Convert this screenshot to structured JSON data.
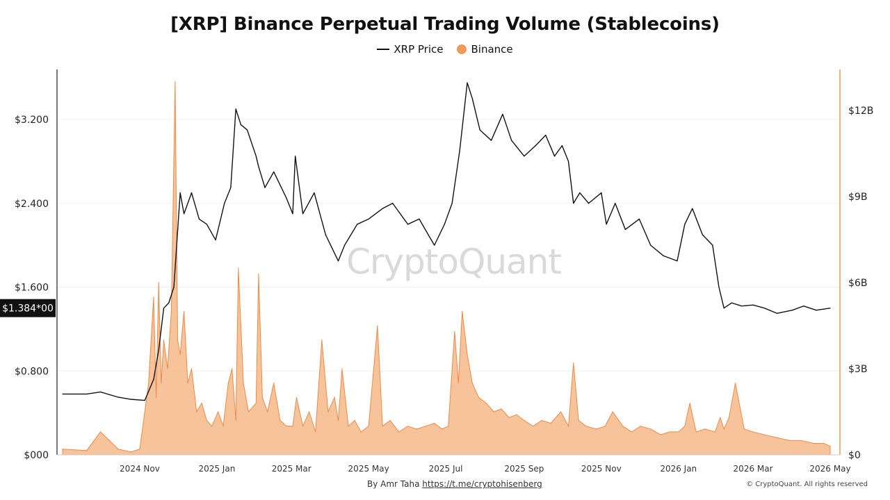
{
  "chart_data": {
    "type": "line",
    "title": "[XRP] Binance Perpetual Trading Volume (Stablecoins)",
    "legend": [
      {
        "name": "XRP Price",
        "style": "line",
        "color": "#111111"
      },
      {
        "name": "Binance",
        "style": "dot",
        "color": "#f0995a"
      }
    ],
    "legend_position": "top-center",
    "grid": true,
    "current_price_label": "$1.384*00",
    "watermark": "CryptoQuant",
    "x_ticks": [
      "2024 Nov",
      "2025 Jan",
      "2025 Mar",
      "2025 May",
      "2025 Jul",
      "2025 Sep",
      "2025 Nov",
      "2026 Jan",
      "2026 Mar",
      "2026 May"
    ],
    "x_range": [
      "2024-09-01",
      "2026-05-01"
    ],
    "y_left": {
      "label": "",
      "ticks": [
        "$000",
        "$0.800",
        "$1.600",
        "$2.400",
        "$3.200"
      ],
      "range": [
        0,
        3.2
      ]
    },
    "y_right": {
      "label": "",
      "ticks": [
        "$0",
        "$3B",
        "$6B",
        "$9B",
        "$12B"
      ],
      "range": [
        0,
        12
      ]
    },
    "series": [
      {
        "name": "XRP Price",
        "axis": "left",
        "color": "#111111",
        "x": [
          "2024-09-01",
          "2024-09-20",
          "2024-10-01",
          "2024-10-15",
          "2024-10-25",
          "2024-11-05",
          "2024-11-12",
          "2024-11-16",
          "2024-11-20",
          "2024-11-24",
          "2024-11-28",
          "2024-12-03",
          "2024-12-06",
          "2024-12-12",
          "2024-12-18",
          "2024-12-24",
          "2024-12-31",
          "2025-01-07",
          "2025-01-12",
          "2025-01-16",
          "2025-01-20",
          "2025-01-25",
          "2025-02-01",
          "2025-02-03",
          "2025-02-08",
          "2025-02-15",
          "2025-02-25",
          "2025-03-02",
          "2025-03-04",
          "2025-03-10",
          "2025-03-19",
          "2025-03-28",
          "2025-04-07",
          "2025-04-12",
          "2025-04-22",
          "2025-05-01",
          "2025-05-12",
          "2025-05-20",
          "2025-06-01",
          "2025-06-10",
          "2025-06-22",
          "2025-06-30",
          "2025-07-06",
          "2025-07-12",
          "2025-07-18",
          "2025-07-22",
          "2025-07-28",
          "2025-08-06",
          "2025-08-15",
          "2025-08-22",
          "2025-09-01",
          "2025-09-10",
          "2025-09-18",
          "2025-09-25",
          "2025-10-01",
          "2025-10-06",
          "2025-10-10",
          "2025-10-15",
          "2025-10-22",
          "2025-11-01",
          "2025-11-05",
          "2025-11-12",
          "2025-11-20",
          "2025-12-01",
          "2025-12-10",
          "2025-12-20",
          "2025-12-31",
          "2026-01-06",
          "2026-01-12",
          "2026-01-20",
          "2026-01-28",
          "2026-02-02",
          "2026-02-06",
          "2026-02-12",
          "2026-02-20",
          "2026-03-01",
          "2026-03-10",
          "2026-03-20",
          "2026-04-01",
          "2026-04-10",
          "2026-04-20",
          "2026-05-01"
        ],
        "values": [
          0.58,
          0.58,
          0.6,
          0.55,
          0.53,
          0.52,
          0.72,
          1.0,
          1.4,
          1.45,
          1.6,
          2.5,
          2.3,
          2.5,
          2.25,
          2.2,
          2.05,
          2.4,
          2.55,
          3.3,
          3.15,
          3.1,
          2.85,
          2.75,
          2.55,
          2.7,
          2.45,
          2.3,
          2.85,
          2.3,
          2.5,
          2.1,
          1.85,
          2.0,
          2.2,
          2.25,
          2.35,
          2.4,
          2.2,
          2.25,
          2.0,
          2.2,
          2.4,
          2.9,
          3.55,
          3.4,
          3.1,
          3.0,
          3.25,
          3.0,
          2.85,
          2.95,
          3.05,
          2.85,
          2.95,
          2.8,
          2.4,
          2.5,
          2.4,
          2.5,
          2.2,
          2.4,
          2.15,
          2.25,
          2.0,
          1.9,
          1.85,
          2.2,
          2.35,
          2.1,
          2.0,
          1.6,
          1.4,
          1.45,
          1.42,
          1.43,
          1.4,
          1.35,
          1.38,
          1.42,
          1.38,
          1.4
        ]
      },
      {
        "name": "Binance",
        "axis": "right",
        "color": "#f0995a",
        "x": [
          "2024-09-01",
          "2024-09-20",
          "2024-10-01",
          "2024-10-15",
          "2024-10-25",
          "2024-11-01",
          "2024-11-05",
          "2024-11-08",
          "2024-11-12",
          "2024-11-14",
          "2024-11-16",
          "2024-11-18",
          "2024-11-20",
          "2024-11-23",
          "2024-11-26",
          "2024-11-29",
          "2024-12-01",
          "2024-12-03",
          "2024-12-06",
          "2024-12-09",
          "2024-12-12",
          "2024-12-16",
          "2024-12-20",
          "2024-12-24",
          "2024-12-28",
          "2025-01-02",
          "2025-01-06",
          "2025-01-10",
          "2025-01-13",
          "2025-01-16",
          "2025-01-18",
          "2025-01-22",
          "2025-01-26",
          "2025-02-01",
          "2025-02-03",
          "2025-02-06",
          "2025-02-10",
          "2025-02-15",
          "2025-02-20",
          "2025-02-25",
          "2025-03-02",
          "2025-03-05",
          "2025-03-10",
          "2025-03-15",
          "2025-03-20",
          "2025-03-25",
          "2025-03-30",
          "2025-04-04",
          "2025-04-07",
          "2025-04-10",
          "2025-04-15",
          "2025-04-20",
          "2025-04-25",
          "2025-05-01",
          "2025-05-08",
          "2025-05-12",
          "2025-05-18",
          "2025-05-25",
          "2025-06-01",
          "2025-06-08",
          "2025-06-15",
          "2025-06-22",
          "2025-06-28",
          "2025-07-03",
          "2025-07-08",
          "2025-07-11",
          "2025-07-14",
          "2025-07-18",
          "2025-07-22",
          "2025-07-27",
          "2025-08-02",
          "2025-08-08",
          "2025-08-14",
          "2025-08-20",
          "2025-08-26",
          "2025-09-01",
          "2025-09-08",
          "2025-09-15",
          "2025-09-22",
          "2025-09-30",
          "2025-10-06",
          "2025-10-10",
          "2025-10-14",
          "2025-10-20",
          "2025-10-28",
          "2025-11-04",
          "2025-11-10",
          "2025-11-18",
          "2025-11-25",
          "2025-12-02",
          "2025-12-10",
          "2025-12-18",
          "2025-12-25",
          "2026-01-01",
          "2026-01-06",
          "2026-01-10",
          "2026-01-15",
          "2026-01-22",
          "2026-01-30",
          "2026-02-03",
          "2026-02-06",
          "2026-02-10",
          "2026-02-15",
          "2026-02-22",
          "2026-03-01",
          "2026-03-10",
          "2026-03-20",
          "2026-03-30",
          "2026-04-08",
          "2026-04-18",
          "2026-04-26",
          "2026-05-01"
        ],
        "values": [
          0.2,
          0.15,
          0.8,
          0.2,
          0.1,
          0.2,
          1.5,
          2.5,
          5.5,
          2.0,
          6.0,
          2.5,
          4.0,
          3.0,
          5.0,
          13.0,
          4.0,
          3.5,
          5.0,
          2.5,
          3.0,
          1.5,
          1.8,
          1.2,
          1.0,
          1.5,
          1.0,
          2.5,
          3.0,
          1.2,
          6.5,
          2.5,
          1.5,
          1.8,
          6.3,
          2.0,
          1.5,
          2.5,
          1.2,
          1.0,
          1.0,
          2.0,
          1.0,
          1.5,
          0.8,
          4.0,
          1.5,
          2.0,
          1.2,
          3.0,
          1.0,
          1.2,
          0.8,
          1.0,
          4.5,
          1.0,
          1.2,
          0.8,
          1.0,
          0.9,
          1.0,
          1.1,
          0.9,
          1.0,
          4.3,
          2.5,
          5.0,
          3.5,
          2.5,
          2.0,
          1.8,
          1.5,
          1.6,
          1.3,
          1.4,
          1.2,
          1.0,
          1.2,
          1.1,
          1.5,
          1.0,
          3.2,
          1.2,
          1.0,
          0.9,
          1.0,
          1.5,
          1.0,
          0.8,
          1.0,
          0.9,
          0.7,
          0.8,
          0.8,
          1.0,
          1.8,
          0.8,
          0.9,
          0.8,
          1.3,
          0.9,
          1.3,
          2.5,
          0.9,
          0.8,
          0.7,
          0.6,
          0.5,
          0.5,
          0.4,
          0.4,
          0.3
        ]
      }
    ]
  },
  "footer": {
    "author_prefix": "By Amr Taha ",
    "author_link": "https://t.me/cryptohisenberg",
    "copyright": "© CryptoQuant. All rights reserved"
  }
}
